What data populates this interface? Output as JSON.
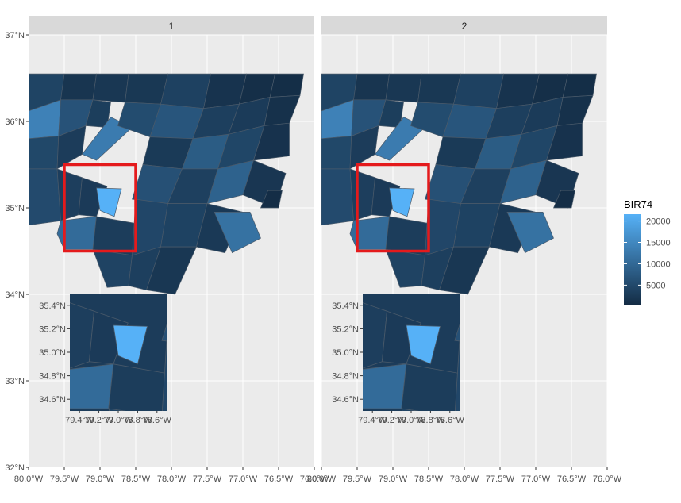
{
  "colors": {
    "panel_bg": "#ebebeb",
    "grid": "#ffffff",
    "strip_bg": "#d9d9d9",
    "county_border": "#4a5a6a",
    "low": "#132b43",
    "high": "#56b1f7",
    "highlight_box": "#e41a1c"
  },
  "chart_data": {
    "type": "heatmap",
    "subtype": "choropleth-map",
    "facets": [
      "1",
      "2"
    ],
    "fill_variable": "BIR74",
    "legend": {
      "title": "BIR74",
      "breaks": [
        5000,
        10000,
        15000,
        20000
      ],
      "labels": [
        "5000",
        "10000",
        "15000",
        "20000"
      ],
      "limits": [
        248,
        21588
      ],
      "position": "right"
    },
    "xlim": [
      -80.0,
      -76.0
    ],
    "ylim": [
      32.0,
      37.0
    ],
    "x_ticks": [
      -80.0,
      -79.5,
      -79.0,
      -78.5,
      -78.0,
      -77.5,
      -77.0,
      -76.5,
      -76.0
    ],
    "x_tick_labels": [
      "80.0°W",
      "79.5°W",
      "79.0°W",
      "78.5°W",
      "78.0°W",
      "77.5°W",
      "77.0°W",
      "76.5°W",
      "76.0°W"
    ],
    "y_ticks": [
      32,
      33,
      34,
      35,
      36,
      37
    ],
    "y_tick_labels": [
      "32°N",
      "33°N",
      "34°N",
      "35°N",
      "36°N",
      "37°N"
    ],
    "grid": true,
    "highlight_box": {
      "x": [
        -79.5,
        -78.5
      ],
      "y": [
        34.5,
        35.5
      ]
    },
    "inset": {
      "x_tick_labels": [
        "79.4°W",
        "79.2°W",
        "79.0°W",
        "78.8°W",
        "78.6°W"
      ],
      "y_tick_labels": [
        "35.4°N",
        "35.2°N",
        "35.0°N",
        "34.8°N",
        "34.6°N"
      ]
    },
    "regions": [
      {
        "x": [
          -80.0,
          -79.5,
          -79.55,
          -80.0
        ],
        "y": [
          36.55,
          36.55,
          36.12,
          36.12
        ],
        "value": 4200
      },
      {
        "x": [
          -79.5,
          -79.05,
          -79.1,
          -79.55
        ],
        "y": [
          36.55,
          36.55,
          36.25,
          36.25
        ],
        "value": 1800
      },
      {
        "x": [
          -79.05,
          -78.6,
          -78.65,
          -79.1
        ],
        "y": [
          36.55,
          36.55,
          36.22,
          36.25
        ],
        "value": 2100
      },
      {
        "x": [
          -78.6,
          -78.05,
          -78.15,
          -78.65
        ],
        "y": [
          36.55,
          36.55,
          36.2,
          36.22
        ],
        "value": 2300
      },
      {
        "x": [
          -78.05,
          -77.45,
          -77.55,
          -78.15
        ],
        "y": [
          36.55,
          36.55,
          36.15,
          36.2
        ],
        "value": 3800
      },
      {
        "x": [
          -77.45,
          -76.95,
          -77.05,
          -77.55
        ],
        "y": [
          36.55,
          36.55,
          36.2,
          36.15
        ],
        "value": 1500
      },
      {
        "x": [
          -76.95,
          -76.55,
          -76.62,
          -77.05
        ],
        "y": [
          36.55,
          36.55,
          36.28,
          36.2
        ],
        "value": 900
      },
      {
        "x": [
          -76.55,
          -76.15,
          -76.2,
          -76.62
        ],
        "y": [
          36.55,
          36.55,
          36.3,
          36.28
        ],
        "value": 700
      },
      {
        "x": [
          -80.0,
          -79.55,
          -79.58,
          -80.0
        ],
        "y": [
          36.12,
          36.25,
          35.83,
          35.8
        ],
        "value": 14000
      },
      {
        "x": [
          -79.55,
          -79.1,
          -79.2,
          -79.58
        ],
        "y": [
          36.25,
          36.25,
          35.95,
          35.83
        ],
        "value": 6500
      },
      {
        "x": [
          -79.1,
          -78.85,
          -78.9,
          -79.2
        ],
        "y": [
          36.25,
          36.22,
          35.93,
          35.95
        ],
        "value": 3200
      },
      {
        "x": [
          -78.85,
          -78.55,
          -79.05,
          -79.25
        ],
        "y": [
          36.05,
          35.93,
          35.55,
          35.62
        ],
        "value": 13000
      },
      {
        "x": [
          -78.65,
          -78.15,
          -78.3,
          -78.75
        ],
        "y": [
          36.22,
          36.2,
          35.82,
          35.95
        ],
        "value": 5500
      },
      {
        "x": [
          -78.15,
          -77.55,
          -77.7,
          -78.3
        ],
        "y": [
          36.2,
          36.15,
          35.8,
          35.82
        ],
        "value": 7000
      },
      {
        "x": [
          -77.55,
          -77.05,
          -77.2,
          -77.7
        ],
        "y": [
          36.15,
          36.2,
          35.85,
          35.8
        ],
        "value": 3500
      },
      {
        "x": [
          -77.05,
          -76.62,
          -76.7,
          -77.2
        ],
        "y": [
          36.2,
          36.28,
          35.95,
          35.85
        ],
        "value": 2800
      },
      {
        "x": [
          -76.62,
          -76.2,
          -76.35,
          -76.7
        ],
        "y": [
          36.28,
          36.3,
          35.98,
          35.95
        ],
        "value": 1200
      },
      {
        "x": [
          -80.0,
          -79.58,
          -79.6,
          -80.0
        ],
        "y": [
          35.8,
          35.83,
          35.45,
          35.45
        ],
        "value": 4800
      },
      {
        "x": [
          -79.58,
          -79.2,
          -79.25,
          -79.6
        ],
        "y": [
          35.83,
          35.95,
          35.62,
          35.45
        ],
        "value": 3000
      },
      {
        "x": [
          -78.3,
          -77.7,
          -77.85,
          -78.4
        ],
        "y": [
          35.82,
          35.8,
          35.45,
          35.5
        ],
        "value": 2600
      },
      {
        "x": [
          -77.7,
          -77.2,
          -77.35,
          -77.85
        ],
        "y": [
          35.8,
          35.85,
          35.45,
          35.45
        ],
        "value": 8000
      },
      {
        "x": [
          -77.2,
          -76.7,
          -76.85,
          -77.35
        ],
        "y": [
          35.85,
          35.95,
          35.55,
          35.45
        ],
        "value": 4500
      },
      {
        "x": [
          -76.7,
          -76.35,
          -76.35,
          -76.85
        ],
        "y": [
          35.95,
          35.98,
          35.6,
          35.55
        ],
        "value": 1400
      },
      {
        "x": [
          -78.4,
          -77.85,
          -78.05,
          -78.55
        ],
        "y": [
          35.5,
          35.45,
          35.05,
          35.1
        ],
        "value": 6200
      },
      {
        "x": [
          -77.85,
          -77.35,
          -77.5,
          -78.05
        ],
        "y": [
          35.45,
          35.45,
          35.05,
          35.05
        ],
        "value": 3600
      },
      {
        "x": [
          -77.35,
          -76.85,
          -77.0,
          -77.5
        ],
        "y": [
          35.45,
          35.55,
          35.15,
          35.05
        ],
        "value": 9000
      },
      {
        "x": [
          -76.85,
          -76.4,
          -76.55,
          -77.0
        ],
        "y": [
          35.55,
          35.4,
          35.0,
          35.15
        ],
        "value": 2000
      },
      {
        "x": [
          -80.0,
          -79.6,
          -79.55,
          -80.0
        ],
        "y": [
          35.45,
          35.45,
          34.85,
          34.8
        ],
        "value": 5200
      },
      {
        "x": [
          -79.6,
          -79.25,
          -79.3,
          -79.55
        ],
        "y": [
          35.45,
          35.35,
          34.92,
          34.85
        ],
        "value": 3300
      },
      {
        "x": [
          -79.25,
          -78.9,
          -79.05,
          -79.3
        ],
        "y": [
          35.35,
          35.25,
          34.9,
          34.92
        ],
        "value": 2700
      },
      {
        "x": [
          -79.05,
          -78.7,
          -78.8,
          -79.0
        ],
        "y": [
          35.23,
          35.22,
          34.9,
          34.97
        ],
        "value": 21588
      },
      {
        "x": [
          -79.55,
          -79.05,
          -79.1,
          -79.5,
          -79.6
        ],
        "y": [
          34.85,
          34.9,
          34.52,
          34.52,
          34.7
        ],
        "value": 10500
      },
      {
        "x": [
          -79.05,
          -78.5,
          -78.55,
          -79.1
        ],
        "y": [
          34.9,
          34.82,
          34.45,
          34.52
        ],
        "value": 3100
      },
      {
        "x": [
          -78.5,
          -78.05,
          -78.15,
          -78.55
        ],
        "y": [
          35.1,
          35.05,
          34.55,
          34.45
        ],
        "value": 4600
      },
      {
        "x": [
          -78.05,
          -77.5,
          -77.65,
          -78.15
        ],
        "y": [
          35.05,
          35.05,
          34.55,
          34.55
        ],
        "value": 3900
      },
      {
        "x": [
          -77.5,
          -77.0,
          -77.25,
          -77.65
        ],
        "y": [
          35.05,
          34.95,
          34.48,
          34.55
        ],
        "value": 2500
      },
      {
        "x": [
          -77.4,
          -76.9,
          -76.75,
          -77.15
        ],
        "y": [
          34.95,
          34.95,
          34.65,
          34.48
        ],
        "value": 11500
      },
      {
        "x": [
          -79.1,
          -78.55,
          -78.6,
          -78.9
        ],
        "y": [
          34.52,
          34.45,
          34.1,
          34.08
        ],
        "value": 4100
      },
      {
        "x": [
          -78.55,
          -78.15,
          -78.35,
          -78.6
        ],
        "y": [
          34.45,
          34.55,
          34.05,
          34.1
        ],
        "value": 3400
      },
      {
        "x": [
          -78.15,
          -77.65,
          -77.95,
          -78.35
        ],
        "y": [
          34.55,
          34.55,
          34.0,
          34.05
        ],
        "value": 2200
      },
      {
        "x": [
          -76.65,
          -76.45,
          -76.5,
          -76.75
        ],
        "y": [
          35.2,
          35.2,
          35.0,
          35.0
        ],
        "value": 600
      }
    ]
  }
}
